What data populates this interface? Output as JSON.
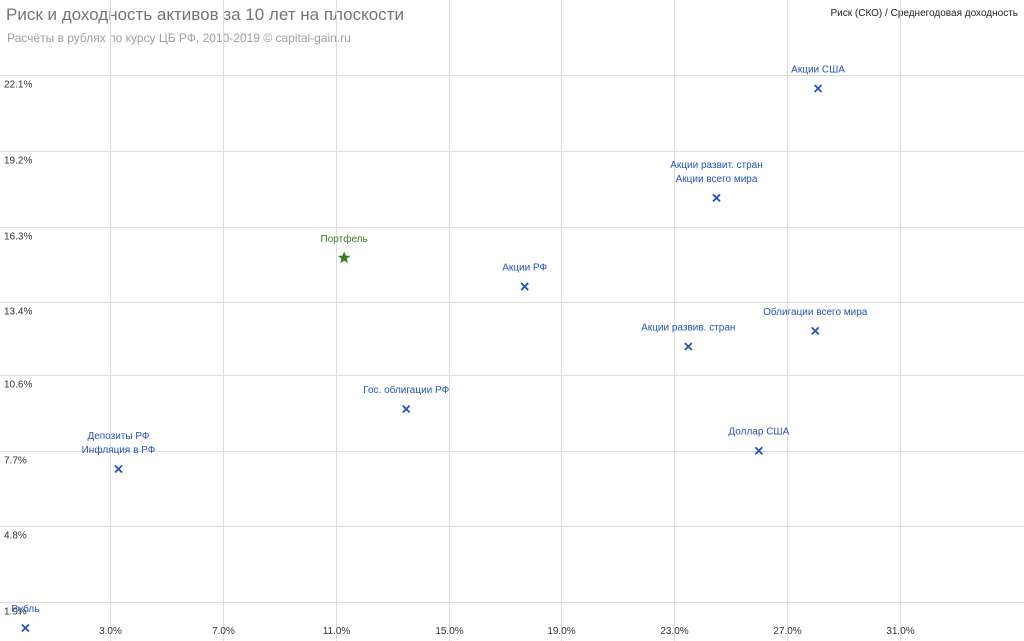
{
  "chart_data": {
    "type": "scatter",
    "title": "Риск и доходность активов за 10 лет на плоскости",
    "subtitle": "Расчёты в рублях по курсу ЦБ РФ, 2010-2019 © capital-gain.ru",
    "legend_label": "Риск (СКО) / Среднегодовая доходность",
    "legend_position": "top-right",
    "grid": true,
    "xlim": [
      -0.9,
      35.4
    ],
    "ylim": [
      0.4,
      23.0
    ],
    "x_ticks": [
      3.0,
      7.0,
      11.0,
      15.0,
      19.0,
      23.0,
      27.0,
      31.0
    ],
    "x_tick_labels": [
      "3.0%",
      "7.0%",
      "11.0%",
      "15.0%",
      "19.0%",
      "23.0%",
      "27.0%",
      "31.0%"
    ],
    "y_ticks": [
      1.9,
      4.8,
      7.7,
      10.6,
      13.4,
      16.3,
      19.2,
      22.1
    ],
    "y_tick_labels": [
      "1.9%",
      "4.8%",
      "7.7%",
      "10.6%",
      "13.4%",
      "16.3%",
      "19.2%",
      "22.1%"
    ],
    "colors": {
      "asset": "#2453c0",
      "portfolio": "#3a7d22",
      "grid": "#dddddd"
    },
    "points": [
      {
        "label": "Рубль",
        "x": 0.0,
        "y": 0.9,
        "marker": "x"
      },
      {
        "label": "Депозиты РФ",
        "x": 3.3,
        "y": 7.0,
        "marker": "x"
      },
      {
        "label": "Инфляция в РФ",
        "x": 3.3,
        "y": 7.0,
        "marker": "x"
      },
      {
        "label": "Гос. облигации РФ",
        "x": 13.5,
        "y": 9.3,
        "marker": "x"
      },
      {
        "label": "Портфель",
        "x": 11.3,
        "y": 15.1,
        "marker": "star"
      },
      {
        "label": "Акции РФ",
        "x": 17.7,
        "y": 14.0,
        "marker": "x"
      },
      {
        "label": "Акции развив. стран",
        "x": 23.5,
        "y": 11.7,
        "marker": "x"
      },
      {
        "label": "Акции развит. стран",
        "x": 24.5,
        "y": 17.4,
        "marker": "x"
      },
      {
        "label": "Акции всего мира",
        "x": 24.5,
        "y": 17.4,
        "marker": "x"
      },
      {
        "label": "Облигации всего мира",
        "x": 28.0,
        "y": 12.3,
        "marker": "x"
      },
      {
        "label": "Доллар США",
        "x": 26.0,
        "y": 7.7,
        "marker": "x"
      },
      {
        "label": "Акции США",
        "x": 28.1,
        "y": 21.6,
        "marker": "x"
      }
    ]
  }
}
